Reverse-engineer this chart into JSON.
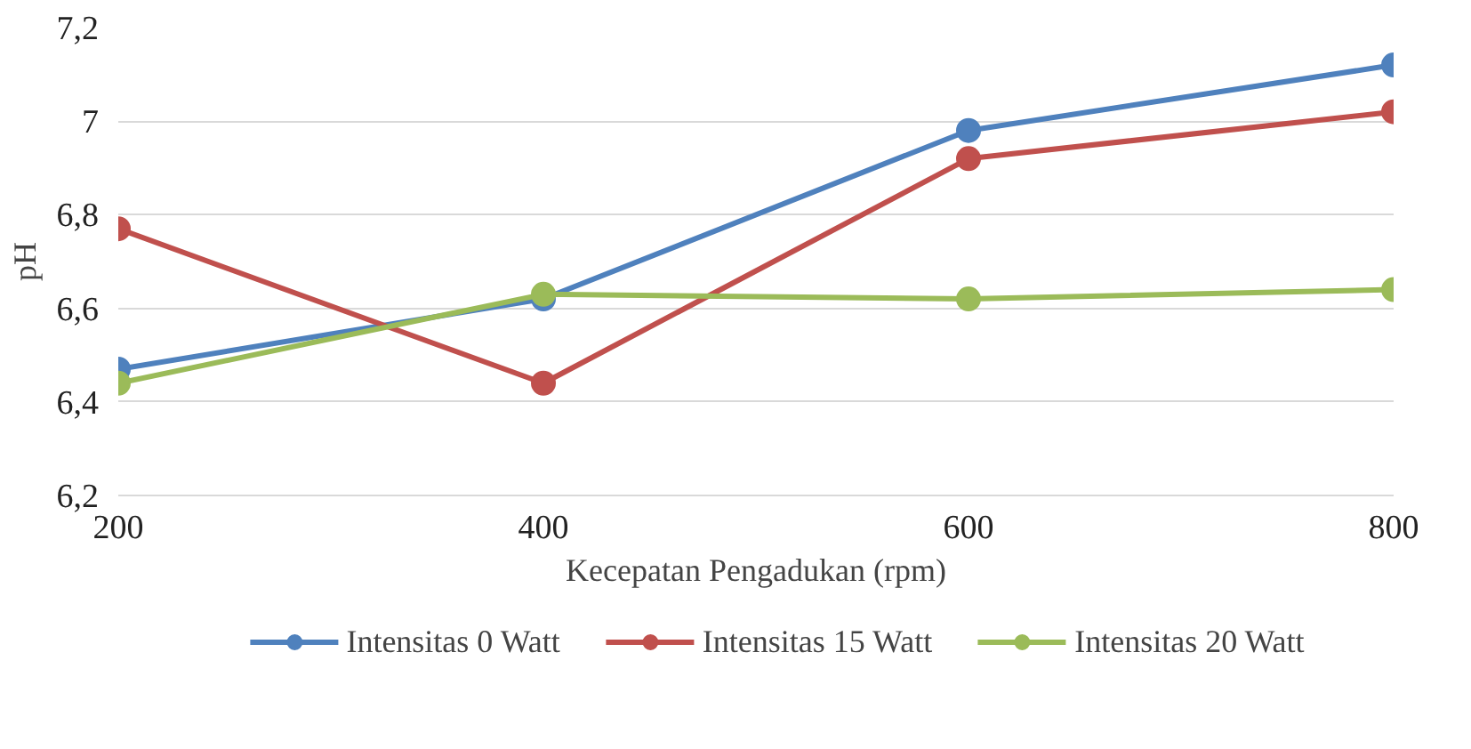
{
  "chart_data": {
    "type": "line",
    "xlabel": "Kecepatan Pengadukan (rpm)",
    "ylabel": "pH",
    "x": [
      200,
      400,
      600,
      800
    ],
    "series": [
      {
        "name": "Intensitas 0 Watt",
        "color": "#4f81bd",
        "values": [
          6.47,
          6.62,
          6.98,
          7.12
        ]
      },
      {
        "name": "Intensitas 15 Watt",
        "color": "#c0504d",
        "values": [
          6.77,
          6.44,
          6.92,
          7.02
        ]
      },
      {
        "name": "Intensitas 20 Watt",
        "color": "#9bbb59",
        "values": [
          6.44,
          6.63,
          6.62,
          6.64
        ]
      }
    ],
    "xlim": [
      200,
      800
    ],
    "xticks": [
      200,
      400,
      600,
      800
    ],
    "ylim": [
      6.2,
      7.2
    ],
    "yticks": [
      {
        "value": 6.2,
        "label": "6,2"
      },
      {
        "value": 6.4,
        "label": "6,4"
      },
      {
        "value": 6.6,
        "label": "6,6"
      },
      {
        "value": 6.8,
        "label": "6,8"
      },
      7,
      {
        "value": 7.2,
        "label": "7,2"
      }
    ],
    "grid": "y",
    "legend": "bottom",
    "marker": "circle",
    "line_style": "solid"
  }
}
